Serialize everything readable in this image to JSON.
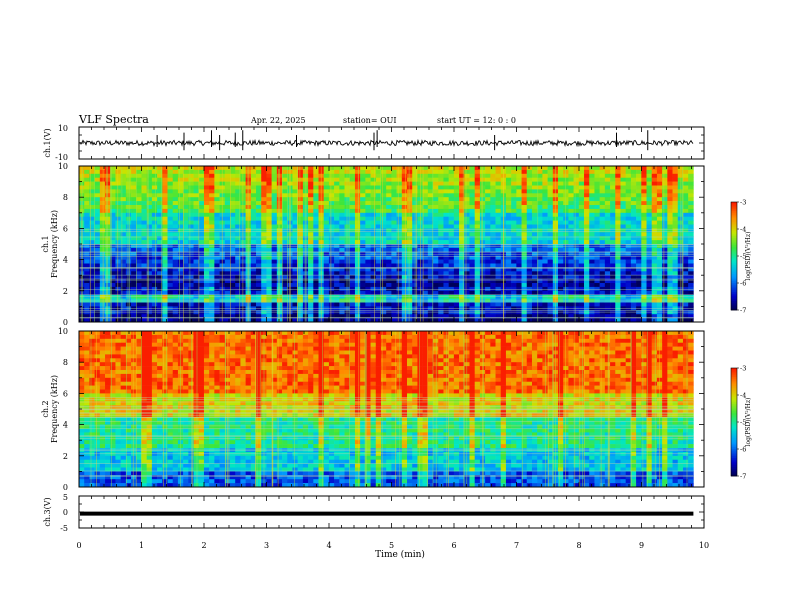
{
  "header": {
    "title": "VLF Spectra",
    "date": "Apr. 22, 2025",
    "station": "station= OUI",
    "start": "start  UT =   12: 0  : 0"
  },
  "chart_data": [
    {
      "type": "line",
      "panel": "ch1-waveform",
      "ylabel": "ch.1(V)",
      "ylim": [
        -10,
        10
      ],
      "yticks": [
        "10",
        "-10"
      ],
      "xlim": [
        0,
        10
      ],
      "baseline": 0,
      "spike_times": [
        1.25,
        1.68,
        2.12,
        2.25,
        2.5,
        2.62,
        3.48,
        4.72,
        4.77,
        6.65,
        8.6,
        9.1
      ],
      "x_end": 9.83
    },
    {
      "type": "heatmap",
      "panel": "ch1-spectrogram",
      "ylabel": "ch.1\nFrequency (kHz)",
      "ylim": [
        0,
        10
      ],
      "yticks": [
        "0",
        "2",
        "4",
        "6",
        "8",
        "10"
      ],
      "xlim": [
        0,
        10
      ],
      "x_end": 9.83,
      "colorbar": {
        "label": "log(PSD)(V²/Hz)",
        "range": [
          -7,
          -3
        ],
        "ticks": [
          "-3",
          "-4",
          "-5",
          "-6",
          "-7"
        ]
      }
    },
    {
      "type": "heatmap",
      "panel": "ch2-spectrogram",
      "ylabel": "ch.2\nFrequency (kHz)",
      "ylim": [
        0,
        10
      ],
      "yticks": [
        "0",
        "2",
        "4",
        "6",
        "8",
        "10"
      ],
      "xlim": [
        0,
        10
      ],
      "x_end": 9.83,
      "colorbar": {
        "label": "log(PSD)(V²/Hz)",
        "range": [
          -7,
          -3
        ],
        "ticks": [
          "-3",
          "-4",
          "-5",
          "-6",
          "-7"
        ]
      }
    },
    {
      "type": "line",
      "panel": "ch3-waveform",
      "ylabel": "ch.3(V)",
      "ylim": [
        -5,
        5
      ],
      "yticks": [
        "5",
        "0",
        "-5"
      ],
      "xlim": [
        0,
        10
      ],
      "constant_value": -0.5,
      "x_end": 9.83
    }
  ],
  "xaxis": {
    "label": "Time (min)",
    "ticks": [
      "0",
      "1",
      "2",
      "3",
      "4",
      "5",
      "6",
      "7",
      "8",
      "9",
      "10"
    ]
  }
}
